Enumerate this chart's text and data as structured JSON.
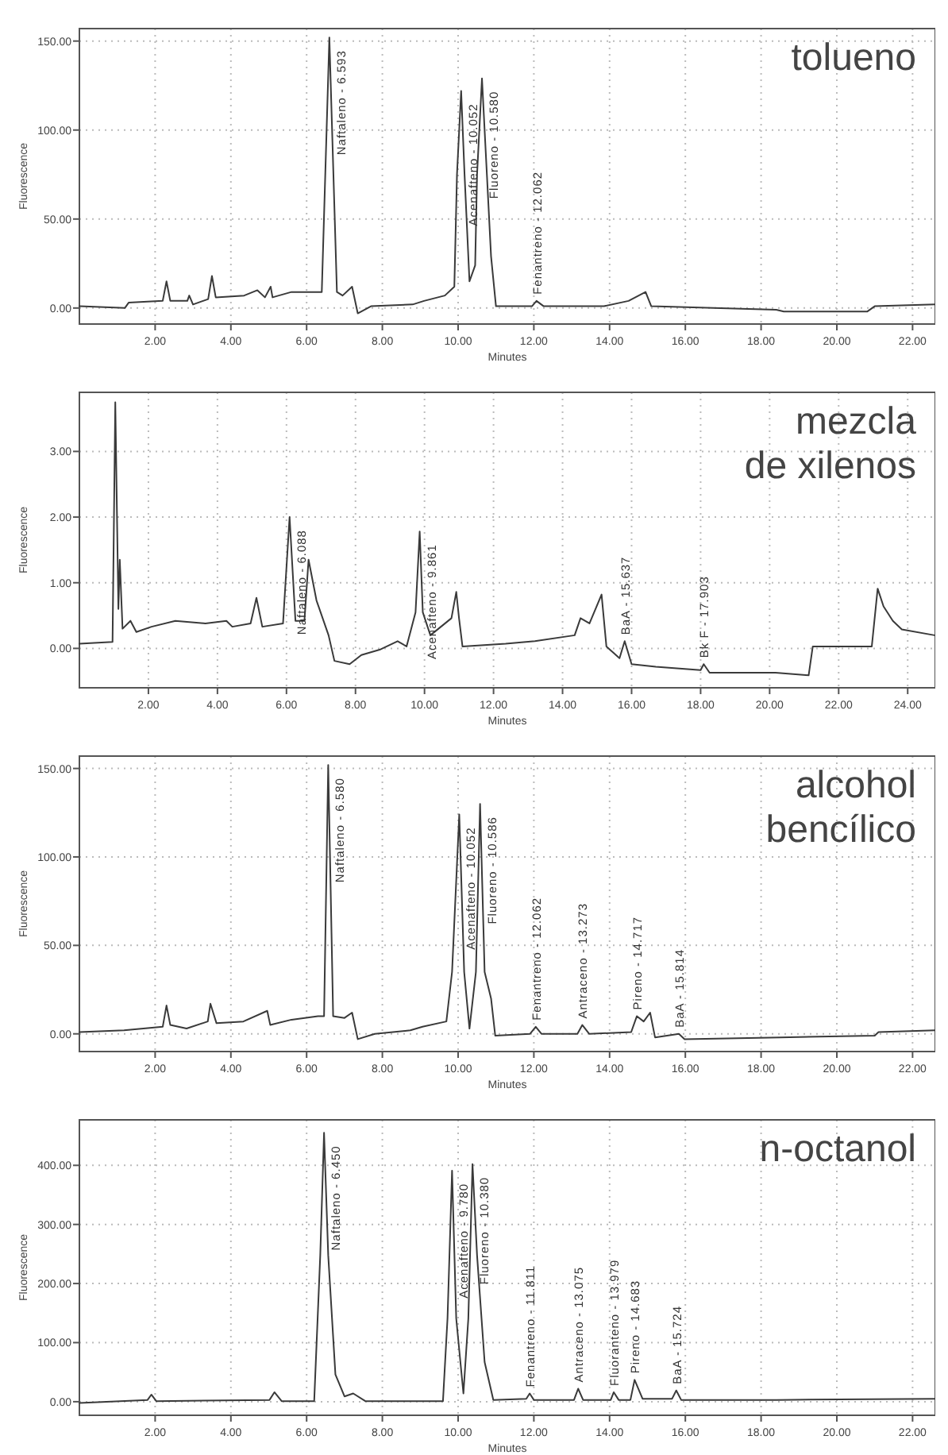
{
  "chart_data": [
    {
      "type": "line",
      "title": "tolueno",
      "xlabel": "Minutes",
      "ylabel": "Fluorescence",
      "xlim": [
        0,
        22.6
      ],
      "ylim": [
        -9,
        157
      ],
      "grid": true,
      "xticks": [
        {
          "value": 2,
          "label": "2.00"
        },
        {
          "value": 4,
          "label": "4.00"
        },
        {
          "value": 6,
          "label": "6.00"
        },
        {
          "value": 8,
          "label": "8.00"
        },
        {
          "value": 10,
          "label": "10.00"
        },
        {
          "value": 12,
          "label": "12.00"
        },
        {
          "value": 14,
          "label": "14.00"
        },
        {
          "value": 16,
          "label": "16.00"
        },
        {
          "value": 18,
          "label": "18.00"
        },
        {
          "value": 20,
          "label": "20.00"
        },
        {
          "value": 22,
          "label": "22.00"
        }
      ],
      "yticks": [
        {
          "value": 0,
          "label": "0.00"
        },
        {
          "value": 50,
          "label": "50.00"
        },
        {
          "value": 100,
          "label": "100.00"
        },
        {
          "value": 150,
          "label": "150.00"
        }
      ],
      "series": [
        {
          "color": "#3a3a3a",
          "x": [
            0,
            1.2,
            1.3,
            2.2,
            2.3,
            2.4,
            2.85,
            2.9,
            3.0,
            3.4,
            3.5,
            3.6,
            4.35,
            4.7,
            4.9,
            5.05,
            5.1,
            5.6,
            6.1,
            6.4,
            6.6,
            6.8,
            6.95,
            7.2,
            7.35,
            7.7,
            8.8,
            9.1,
            9.65,
            9.9,
            9.97,
            10.08,
            10.17,
            10.3,
            10.45,
            10.5,
            10.63,
            10.76,
            10.87,
            11.0,
            11.95,
            12.07,
            12.26,
            13.85,
            14.5,
            14.95,
            15.1,
            18.4,
            18.6,
            20.8,
            21.0,
            22.6
          ],
          "values": [
            1,
            0,
            3,
            4,
            15,
            4,
            4,
            7,
            2,
            5,
            18,
            6,
            7,
            10,
            6,
            12,
            6,
            9,
            9,
            9,
            152,
            9,
            7,
            12,
            -3,
            1,
            2,
            4,
            7,
            12,
            75,
            122,
            75,
            15,
            24,
            75,
            129,
            75,
            29,
            1,
            1,
            4,
            1,
            1,
            4,
            9,
            1,
            -1,
            -2,
            -2,
            1,
            2
          ]
        }
      ],
      "annotations": [
        {
          "text": "Naftaleno - 6.593",
          "x": 6.6,
          "y": 152
        },
        {
          "text": "Acenafteno - 10.052",
          "x": 10.08,
          "y": 122
        },
        {
          "text": "Fluoreno - 10.580",
          "x": 10.63,
          "y": 129
        },
        {
          "text": "Fenantreno - 12.062",
          "x": 12.07,
          "y": 4
        }
      ]
    },
    {
      "type": "line",
      "title": "mezcla de xilenos",
      "xlabel": "Minutes",
      "ylabel": "Fluorescence",
      "xlim": [
        0,
        24.8
      ],
      "ylim": [
        -0.6,
        3.9
      ],
      "grid": true,
      "xticks": [
        {
          "value": 2,
          "label": "2.00"
        },
        {
          "value": 4,
          "label": "4.00"
        },
        {
          "value": 6,
          "label": "6.00"
        },
        {
          "value": 8,
          "label": "8.00"
        },
        {
          "value": 10,
          "label": "10.00"
        },
        {
          "value": 12,
          "label": "12.00"
        },
        {
          "value": 14,
          "label": "14.00"
        },
        {
          "value": 16,
          "label": "16.00"
        },
        {
          "value": 18,
          "label": "18.00"
        },
        {
          "value": 20,
          "label": "20.00"
        },
        {
          "value": 22,
          "label": "22.00"
        },
        {
          "value": 24,
          "label": "24.00"
        }
      ],
      "yticks": [
        {
          "value": 0,
          "label": "0.00"
        },
        {
          "value": 1,
          "label": "1.00"
        },
        {
          "value": 2,
          "label": "2.00"
        },
        {
          "value": 3,
          "label": "3.00"
        }
      ],
      "series": [
        {
          "color": "#3a3a3a",
          "x": [
            0,
            0.96,
            1.04,
            1.13,
            1.17,
            1.25,
            1.48,
            1.65,
            2.09,
            2.78,
            3.65,
            4.26,
            4.43,
            4.96,
            5.13,
            5.3,
            5.9,
            6.09,
            6.26,
            6.52,
            6.64,
            6.87,
            7.22,
            7.39,
            7.83,
            8.17,
            8.7,
            9.22,
            9.48,
            9.74,
            9.86,
            9.95,
            10.17,
            10.78,
            10.92,
            11.0,
            11.1,
            12.35,
            13.2,
            14.35,
            14.52,
            14.78,
            15.13,
            15.27,
            15.65,
            15.8,
            16.0,
            16.7,
            18.0,
            18.09,
            18.26,
            20.17,
            21.13,
            21.25,
            22.96,
            23.13,
            23.3,
            23.57,
            23.83,
            24.78
          ],
          "values": [
            0.07,
            0.1,
            3.75,
            0.6,
            1.35,
            0.3,
            0.42,
            0.25,
            0.33,
            0.42,
            0.38,
            0.42,
            0.33,
            0.38,
            0.77,
            0.33,
            0.38,
            2.0,
            0.42,
            0.42,
            1.35,
            0.73,
            0.2,
            -0.19,
            -0.24,
            -0.1,
            -0.02,
            0.11,
            0.03,
            0.55,
            1.78,
            0.55,
            0.2,
            0.46,
            0.86,
            0.46,
            0.03,
            0.07,
            0.11,
            0.2,
            0.46,
            0.38,
            0.82,
            0.03,
            -0.15,
            0.11,
            -0.24,
            -0.28,
            -0.33,
            -0.24,
            -0.37,
            -0.37,
            -0.41,
            0.03,
            0.03,
            0.91,
            0.64,
            0.42,
            0.29,
            0.2
          ]
        }
      ],
      "annotations": [
        {
          "text": "Naftaleno - 6.088",
          "x": 6.09,
          "y": 2.0
        },
        {
          "text": "Acenafteno - 9.861",
          "x": 9.86,
          "y": 1.78
        },
        {
          "text": "BaA - 15.637",
          "x": 15.8,
          "y": 0.11
        },
        {
          "text": "Bk F - 17.903",
          "x": 18.09,
          "y": -0.24
        }
      ]
    },
    {
      "type": "line",
      "title": "alcohol bencílico",
      "xlabel": "Minutes",
      "ylabel": "Fluorescence",
      "xlim": [
        0,
        22.6
      ],
      "ylim": [
        -10,
        157
      ],
      "grid": true,
      "xticks": [
        {
          "value": 2,
          "label": "2.00"
        },
        {
          "value": 4,
          "label": "4.00"
        },
        {
          "value": 6,
          "label": "6.00"
        },
        {
          "value": 8,
          "label": "8.00"
        },
        {
          "value": 10,
          "label": "10.00"
        },
        {
          "value": 12,
          "label": "12.00"
        },
        {
          "value": 14,
          "label": "14.00"
        },
        {
          "value": 16,
          "label": "16.00"
        },
        {
          "value": 18,
          "label": "18.00"
        },
        {
          "value": 20,
          "label": "20.00"
        },
        {
          "value": 22,
          "label": "22.00"
        }
      ],
      "yticks": [
        {
          "value": 0,
          "label": "0.00"
        },
        {
          "value": 50,
          "label": "50.00"
        },
        {
          "value": 100,
          "label": "100.00"
        },
        {
          "value": 150,
          "label": "150.00"
        }
      ],
      "series": [
        {
          "color": "#3a3a3a",
          "x": [
            0,
            1.18,
            2.2,
            2.3,
            2.4,
            2.83,
            3.39,
            3.46,
            3.62,
            4.33,
            4.96,
            5.04,
            5.6,
            6.3,
            6.46,
            6.57,
            6.7,
            7.0,
            7.2,
            7.35,
            7.8,
            8.74,
            9.06,
            9.69,
            9.84,
            10.03,
            10.16,
            10.3,
            10.47,
            10.58,
            10.7,
            10.87,
            10.98,
            11.9,
            12.05,
            12.2,
            13.15,
            13.28,
            13.46,
            14.57,
            14.72,
            14.9,
            15.07,
            15.2,
            15.83,
            15.98,
            18.5,
            21.0,
            21.1,
            22.6
          ],
          "values": [
            1,
            2,
            4,
            16,
            5,
            3,
            7,
            17,
            6,
            7,
            13,
            5,
            8,
            10,
            10,
            152,
            10,
            9,
            12,
            -3,
            0,
            2,
            4,
            7,
            35,
            124,
            35,
            3,
            35,
            130,
            35,
            20,
            -1,
            0,
            4,
            0,
            0,
            5,
            0,
            1,
            10,
            7,
            12,
            -2,
            0,
            -3,
            -2,
            -1,
            1,
            2
          ]
        }
      ],
      "annotations": [
        {
          "text": "Naftaleno - 6.580",
          "x": 6.57,
          "y": 152
        },
        {
          "text": "Acenafteno - 10.052",
          "x": 10.03,
          "y": 124
        },
        {
          "text": "Fluoreno - 10.586",
          "x": 10.58,
          "y": 130
        },
        {
          "text": "Fenantreno - 12.062",
          "x": 12.05,
          "y": 4
        },
        {
          "text": "Antraceno - 13.273",
          "x": 13.28,
          "y": 5
        },
        {
          "text": "Pireno - 14.717",
          "x": 14.72,
          "y": 10
        },
        {
          "text": "BaA - 15.814",
          "x": 15.83,
          "y": 0
        }
      ]
    },
    {
      "type": "line",
      "title": "n-octanol",
      "xlabel": "Minutes",
      "ylabel": "Fluorescence",
      "xlim": [
        0,
        22.6
      ],
      "ylim": [
        -23,
        477
      ],
      "grid": true,
      "xticks": [
        {
          "value": 2,
          "label": "2.00"
        },
        {
          "value": 4,
          "label": "4.00"
        },
        {
          "value": 6,
          "label": "6.00"
        },
        {
          "value": 8,
          "label": "8.00"
        },
        {
          "value": 10,
          "label": "10.00"
        },
        {
          "value": 12,
          "label": "12.00"
        },
        {
          "value": 14,
          "label": "14.00"
        },
        {
          "value": 16,
          "label": "16.00"
        },
        {
          "value": 18,
          "label": "18.00"
        },
        {
          "value": 20,
          "label": "20.00"
        },
        {
          "value": 22,
          "label": "22.00"
        }
      ],
      "yticks": [
        {
          "value": 0,
          "label": "0.00"
        },
        {
          "value": 100,
          "label": "100.00"
        },
        {
          "value": 200,
          "label": "200.00"
        },
        {
          "value": 300,
          "label": "300.00"
        },
        {
          "value": 400,
          "label": "400.00"
        }
      ],
      "series": [
        {
          "color": "#3a3a3a",
          "x": [
            0,
            1.8,
            1.9,
            2.03,
            5.02,
            5.15,
            5.34,
            6.2,
            6.36,
            6.46,
            6.57,
            6.76,
            7.0,
            7.23,
            7.55,
            9.6,
            9.72,
            9.84,
            9.95,
            10.14,
            10.27,
            10.38,
            10.5,
            10.7,
            10.93,
            11.8,
            11.89,
            12.0,
            13.06,
            13.17,
            13.3,
            14.03,
            14.11,
            14.24,
            14.55,
            14.66,
            14.87,
            15.65,
            15.76,
            15.89,
            18.4,
            22.6
          ],
          "values": [
            -2,
            3,
            12,
            1,
            3,
            16,
            1,
            1,
            248,
            455,
            248,
            46,
            9,
            14,
            1,
            1,
            141,
            391,
            141,
            14,
            141,
            402,
            248,
            67,
            3,
            5,
            14,
            3,
            3,
            22,
            3,
            3,
            16,
            3,
            3,
            37,
            5,
            5,
            19,
            3,
            3,
            5
          ]
        }
      ],
      "annotations": [
        {
          "text": "Naftaleno - 6.450",
          "x": 6.46,
          "y": 455
        },
        {
          "text": "Acenafteno - 9.780",
          "x": 9.84,
          "y": 391
        },
        {
          "text": "Fluoreno - 10.380",
          "x": 10.38,
          "y": 402
        },
        {
          "text": "Fenantreno - 11.811",
          "x": 11.89,
          "y": 14
        },
        {
          "text": "Antraceno - 13.075",
          "x": 13.17,
          "y": 22
        },
        {
          "text": "Fluoranteno - 13.979",
          "x": 14.11,
          "y": 16
        },
        {
          "text": "Pireno - 14.683",
          "x": 14.66,
          "y": 37
        },
        {
          "text": "BaA - 15.724",
          "x": 15.76,
          "y": 19
        }
      ]
    }
  ]
}
